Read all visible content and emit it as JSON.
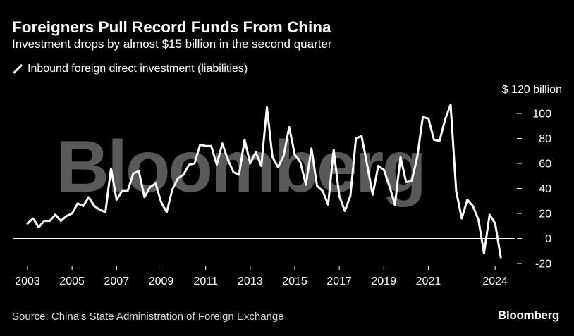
{
  "header": {
    "title": "Foreigners Pull Record Funds From China",
    "subtitle": "Investment drops by almost $15 billion in the second quarter"
  },
  "footer": {
    "source": "Source: China's State Administration of Foreign Exchange",
    "brand": "Bloomberg"
  },
  "watermark": "Bloomberg",
  "colors": {
    "background": "#000000",
    "line": "#ffffff",
    "watermark": "#595959",
    "zero_line": "#ffffff"
  },
  "chart_data": {
    "type": "line",
    "title": "Foreigners Pull Record Funds From China",
    "subtitle": "Investment drops by almost $15 billion in the second quarter",
    "y_unit_label": "$ 120 billion",
    "ylim": [
      -20,
      120
    ],
    "xlim": [
      2003,
      2024.5
    ],
    "yticks": [
      -20,
      0,
      20,
      40,
      60,
      80,
      100
    ],
    "ytick_labels": [
      "-20",
      "0",
      "20",
      "40",
      "60",
      "80",
      "100"
    ],
    "xticks": [
      2003,
      2005,
      2007,
      2009,
      2011,
      2013,
      2015,
      2017,
      2019,
      2021,
      2024
    ],
    "xtick_labels": [
      "2003",
      "2005",
      "2007",
      "2009",
      "2011",
      "2013",
      "2015",
      "2017",
      "2019",
      "2021",
      "2024"
    ],
    "grid": false,
    "zero_line": true,
    "legend_position": "top-left",
    "series": [
      {
        "name": "Inbound foreign direct investment (liabilities)",
        "color": "#ffffff",
        "x": [
          2003.0,
          2003.25,
          2003.5,
          2003.75,
          2004.0,
          2004.25,
          2004.5,
          2004.75,
          2005.0,
          2005.25,
          2005.5,
          2005.75,
          2006.0,
          2006.25,
          2006.5,
          2006.75,
          2007.0,
          2007.25,
          2007.5,
          2007.75,
          2008.0,
          2008.25,
          2008.5,
          2008.75,
          2009.0,
          2009.25,
          2009.5,
          2009.75,
          2010.0,
          2010.25,
          2010.5,
          2010.75,
          2011.0,
          2011.25,
          2011.5,
          2011.75,
          2012.0,
          2012.25,
          2012.5,
          2012.75,
          2013.0,
          2013.25,
          2013.5,
          2013.75,
          2014.0,
          2014.25,
          2014.5,
          2014.75,
          2015.0,
          2015.25,
          2015.5,
          2015.75,
          2016.0,
          2016.25,
          2016.5,
          2016.75,
          2017.0,
          2017.25,
          2017.5,
          2017.75,
          2018.0,
          2018.25,
          2018.5,
          2018.75,
          2019.0,
          2019.25,
          2019.5,
          2019.75,
          2020.0,
          2020.25,
          2020.5,
          2020.75,
          2021.0,
          2021.25,
          2021.5,
          2021.75,
          2022.0,
          2022.25,
          2022.5,
          2022.75,
          2023.0,
          2023.25,
          2023.5,
          2023.75,
          2024.0,
          2024.25
        ],
        "y": [
          12,
          16,
          9,
          14,
          14,
          19,
          14,
          18,
          20,
          28,
          26,
          33,
          26,
          23,
          21,
          56,
          31,
          38,
          38,
          52,
          54,
          33,
          41,
          44,
          29,
          21,
          39,
          48,
          51,
          59,
          60,
          75,
          74,
          74,
          59,
          76,
          63,
          53,
          51,
          79,
          60,
          69,
          58,
          105,
          65,
          57,
          66,
          89,
          67,
          61,
          43,
          72,
          42,
          38,
          27,
          71,
          34,
          22,
          34,
          80,
          82,
          59,
          35,
          58,
          55,
          42,
          27,
          65,
          45,
          46,
          65,
          97,
          96,
          79,
          78,
          95,
          107,
          38,
          16,
          31,
          26,
          15,
          -12,
          19,
          12,
          -15
        ]
      }
    ]
  }
}
